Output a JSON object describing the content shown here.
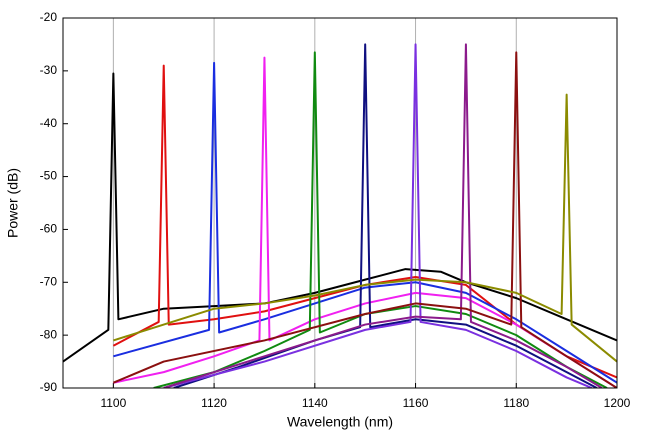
{
  "chart_data": {
    "type": "line",
    "x_label": "Wavelength (nm)",
    "y_label": "Power (dB)",
    "xlim": [
      1090,
      1200
    ],
    "xticks": [
      1100,
      1120,
      1140,
      1160,
      1180,
      1200
    ],
    "ylim": [
      -90,
      -20
    ],
    "yticks": [
      -20,
      -30,
      -40,
      -50,
      -60,
      -70,
      -80,
      -90
    ],
    "grid": "x",
    "series": [
      {
        "color": "#000000",
        "x": [
          1090,
          1099,
          1100,
          1101,
          1110,
          1120,
          1130,
          1140,
          1150,
          1158,
          1165,
          1170,
          1180,
          1190,
          1200
        ],
        "values": [
          -85,
          -79,
          -30.5,
          -77,
          -75,
          -74.5,
          -74,
          -72,
          -69.5,
          -67.5,
          -68,
          -70,
          -73,
          -77,
          -81
        ]
      },
      {
        "color": "#e01010",
        "x": [
          1100,
          1109,
          1110,
          1111,
          1120,
          1130,
          1140,
          1150,
          1160,
          1170,
          1180,
          1190,
          1200
        ],
        "values": [
          -82,
          -77.5,
          -29,
          -78,
          -77,
          -75.5,
          -73,
          -70.5,
          -69,
          -70.5,
          -78,
          -84,
          -88
        ]
      },
      {
        "color": "#1a2ee0",
        "x": [
          1100,
          1119,
          1120,
          1121,
          1130,
          1140,
          1150,
          1160,
          1170,
          1180,
          1190,
          1200
        ],
        "values": [
          -84,
          -79,
          -28.5,
          -79.5,
          -77,
          -74,
          -71,
          -70,
          -72,
          -77,
          -83,
          -89
        ]
      },
      {
        "color": "#f020f0",
        "x": [
          1100,
          1110,
          1120,
          1129,
          1130,
          1131,
          1140,
          1150,
          1160,
          1170,
          1180,
          1190,
          1200
        ],
        "values": [
          -89,
          -87,
          -84,
          -81,
          -27.5,
          -81,
          -77,
          -74,
          -72,
          -73,
          -78,
          -84,
          -90
        ]
      },
      {
        "color": "#108a10",
        "x": [
          1108,
          1120,
          1130,
          1139,
          1140,
          1141,
          1150,
          1160,
          1170,
          1180,
          1190,
          1198
        ],
        "values": [
          -90,
          -87,
          -83,
          -79,
          -26.5,
          -79.5,
          -76,
          -74.5,
          -76,
          -80,
          -86,
          -90
        ]
      },
      {
        "color": "#101080",
        "x": [
          1112,
          1125,
          1140,
          1149,
          1150,
          1151,
          1160,
          1170,
          1180,
          1190,
          1196
        ],
        "values": [
          -90,
          -86,
          -81,
          -78.5,
          -25,
          -78.5,
          -77,
          -78,
          -82,
          -87,
          -90
        ]
      },
      {
        "color": "#7a30e0",
        "x": [
          1110,
          1130,
          1150,
          1159,
          1160,
          1161,
          1170,
          1180,
          1190,
          1195
        ],
        "values": [
          -90,
          -85,
          -79,
          -77.5,
          -25,
          -77.5,
          -79,
          -83,
          -88,
          -90
        ]
      },
      {
        "color": "#8b1a8b",
        "x": [
          1110,
          1130,
          1150,
          1160,
          1169,
          1170,
          1171,
          1180,
          1190,
          1197
        ],
        "values": [
          -90,
          -84,
          -78,
          -76.5,
          -77,
          -25,
          -77.5,
          -81,
          -86,
          -90
        ]
      },
      {
        "color": "#8b1010",
        "x": [
          1100,
          1110,
          1130,
          1150,
          1160,
          1170,
          1179,
          1180,
          1181,
          1190,
          1200
        ],
        "values": [
          -89,
          -85,
          -81,
          -76,
          -74,
          -75,
          -78,
          -26.5,
          -78.5,
          -84,
          -90
        ]
      },
      {
        "color": "#8b8b00",
        "x": [
          1100,
          1110,
          1120,
          1130,
          1140,
          1150,
          1160,
          1170,
          1180,
          1189,
          1190,
          1191,
          1200
        ],
        "values": [
          -81,
          -78,
          -75,
          -74,
          -72.5,
          -70.5,
          -69.5,
          -70,
          -72,
          -76,
          -34.5,
          -78,
          -85
        ]
      }
    ]
  }
}
